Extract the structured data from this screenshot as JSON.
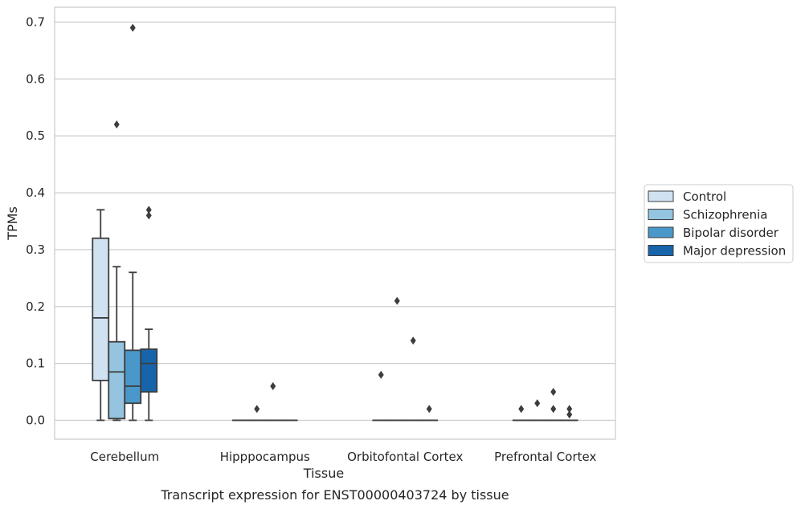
{
  "chart_data": {
    "type": "box",
    "xlabel": "Tissue",
    "ylabel": "TPMs",
    "caption": "Transcript expression for ENST00000403724 by tissue",
    "ylim": [
      -0.035,
      0.725
    ],
    "yticks": [
      "0.0",
      "0.1",
      "0.2",
      "0.3",
      "0.4",
      "0.5",
      "0.6",
      "0.7"
    ],
    "categories": [
      "Cerebellum",
      "Hipppocampus",
      "Orbitofontal Cortex",
      "Prefrontal Cortex"
    ],
    "grid": "horizontal",
    "legend_position": "right",
    "series": [
      {
        "name": "Control",
        "color": "#d0e1f2",
        "boxes": [
          {
            "whisker_low": 0.0,
            "q1": 0.07,
            "median": 0.18,
            "q3": 0.32,
            "whisker_high": 0.37,
            "outliers": []
          },
          {
            "whisker_low": 0.0,
            "q1": 0.0,
            "median": 0.0,
            "q3": 0.0,
            "whisker_high": 0.0,
            "outliers": []
          },
          {
            "whisker_low": 0.0,
            "q1": 0.0,
            "median": 0.0,
            "q3": 0.0,
            "whisker_high": 0.0,
            "outliers": [
              0.08
            ]
          },
          {
            "whisker_low": 0.0,
            "q1": 0.0,
            "median": 0.0,
            "q3": 0.0,
            "whisker_high": 0.0,
            "outliers": [
              0.02
            ]
          }
        ]
      },
      {
        "name": "Schizophrenia",
        "color": "#94c4df",
        "boxes": [
          {
            "whisker_low": 0.0,
            "q1": 0.003,
            "median": 0.085,
            "q3": 0.138,
            "whisker_high": 0.27,
            "outliers": [
              0.52
            ]
          },
          {
            "whisker_low": 0.0,
            "q1": 0.0,
            "median": 0.0,
            "q3": 0.0,
            "whisker_high": 0.0,
            "outliers": [
              0.02
            ]
          },
          {
            "whisker_low": 0.0,
            "q1": 0.0,
            "median": 0.0,
            "q3": 0.0,
            "whisker_high": 0.0,
            "outliers": [
              0.21
            ]
          },
          {
            "whisker_low": 0.0,
            "q1": 0.0,
            "median": 0.0,
            "q3": 0.0,
            "whisker_high": 0.0,
            "outliers": [
              0.03
            ]
          }
        ]
      },
      {
        "name": "Bipolar disorder",
        "color": "#4a98c9",
        "boxes": [
          {
            "whisker_low": 0.0,
            "q1": 0.03,
            "median": 0.06,
            "q3": 0.123,
            "whisker_high": 0.26,
            "outliers": [
              0.69
            ]
          },
          {
            "whisker_low": 0.0,
            "q1": 0.0,
            "median": 0.0,
            "q3": 0.0,
            "whisker_high": 0.0,
            "outliers": [
              0.06
            ]
          },
          {
            "whisker_low": 0.0,
            "q1": 0.0,
            "median": 0.0,
            "q3": 0.0,
            "whisker_high": 0.0,
            "outliers": [
              0.14
            ]
          },
          {
            "whisker_low": 0.0,
            "q1": 0.0,
            "median": 0.0,
            "q3": 0.0,
            "whisker_high": 0.0,
            "outliers": [
              0.05,
              0.02
            ]
          }
        ]
      },
      {
        "name": "Major depression",
        "color": "#1764ab",
        "boxes": [
          {
            "whisker_low": 0.0,
            "q1": 0.05,
            "median": 0.1,
            "q3": 0.125,
            "whisker_high": 0.16,
            "outliers": [
              0.37,
              0.36
            ]
          },
          {
            "whisker_low": 0.0,
            "q1": 0.0,
            "median": 0.0,
            "q3": 0.0,
            "whisker_high": 0.0,
            "outliers": []
          },
          {
            "whisker_low": 0.0,
            "q1": 0.0,
            "median": 0.0,
            "q3": 0.0,
            "whisker_high": 0.0,
            "outliers": [
              0.02
            ]
          },
          {
            "whisker_low": 0.0,
            "q1": 0.0,
            "median": 0.0,
            "q3": 0.0,
            "whisker_high": 0.0,
            "outliers": [
              0.02,
              0.01
            ]
          }
        ]
      }
    ]
  }
}
